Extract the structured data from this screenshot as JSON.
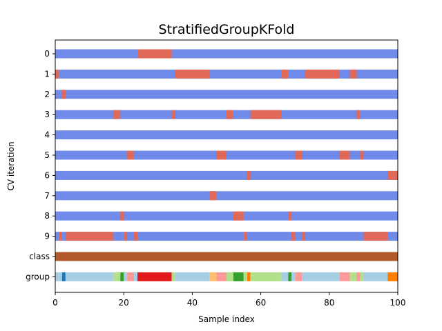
{
  "chart_data": {
    "type": "bar",
    "title": "StratifiedGroupKFold",
    "xlabel": "Sample index",
    "ylabel": "CV iteration",
    "xlim": [
      0,
      100
    ],
    "xticks": [
      "0",
      "20",
      "40",
      "60",
      "80",
      "100"
    ],
    "row_labels": [
      "0",
      "1",
      "2",
      "3",
      "4",
      "5",
      "6",
      "7",
      "8",
      "9",
      "class",
      "group"
    ],
    "colors": {
      "train": "#6f8ae8",
      "test": "#e0695a",
      "class": "#b05a2a"
    },
    "cv_test_segments": [
      [
        [
          24,
          34
        ]
      ],
      [
        [
          0,
          1
        ],
        [
          35,
          45
        ],
        [
          66,
          68
        ],
        [
          73,
          83
        ],
        [
          86,
          88
        ]
      ],
      [
        [
          2,
          3
        ]
      ],
      [
        [
          17,
          19
        ],
        [
          34,
          35
        ],
        [
          50,
          52
        ],
        [
          57,
          66
        ],
        [
          88,
          89
        ]
      ],
      [],
      [
        [
          21,
          23
        ],
        [
          47,
          50
        ],
        [
          70,
          72
        ],
        [
          83,
          86
        ],
        [
          89,
          90
        ]
      ],
      [
        [
          56,
          57
        ],
        [
          97,
          100
        ]
      ],
      [
        [
          45,
          47
        ]
      ],
      [
        [
          19,
          20
        ],
        [
          52,
          55
        ],
        [
          68,
          69
        ]
      ],
      [
        [
          1,
          2
        ],
        [
          3,
          17
        ],
        [
          20,
          21
        ],
        [
          23,
          24
        ],
        [
          55,
          56
        ],
        [
          69,
          70
        ],
        [
          72,
          73
        ],
        [
          90,
          97
        ]
      ]
    ],
    "group_segments": [
      {
        "x": [
          0,
          2
        ],
        "color": "#a6cee3"
      },
      {
        "x": [
          2,
          3
        ],
        "color": "#1f78b4"
      },
      {
        "x": [
          3,
          17
        ],
        "color": "#a6cee3"
      },
      {
        "x": [
          17,
          19
        ],
        "color": "#b2df8a"
      },
      {
        "x": [
          19,
          20
        ],
        "color": "#33a02c"
      },
      {
        "x": [
          20,
          21
        ],
        "color": "#a6cee3"
      },
      {
        "x": [
          21,
          23
        ],
        "color": "#fb9a99"
      },
      {
        "x": [
          23,
          24
        ],
        "color": "#a6cee3"
      },
      {
        "x": [
          24,
          34
        ],
        "color": "#e31a1c"
      },
      {
        "x": [
          34,
          35
        ],
        "color": "#b2df8a"
      },
      {
        "x": [
          35,
          45
        ],
        "color": "#a6cee3"
      },
      {
        "x": [
          45,
          47
        ],
        "color": "#fdbf6f"
      },
      {
        "x": [
          47,
          50
        ],
        "color": "#fb9a99"
      },
      {
        "x": [
          50,
          52
        ],
        "color": "#b2df8a"
      },
      {
        "x": [
          52,
          55
        ],
        "color": "#33a02c"
      },
      {
        "x": [
          55,
          56
        ],
        "color": "#b2df8a"
      },
      {
        "x": [
          56,
          57
        ],
        "color": "#ff7f00"
      },
      {
        "x": [
          57,
          66
        ],
        "color": "#b2df8a"
      },
      {
        "x": [
          66,
          68
        ],
        "color": "#a6cee3"
      },
      {
        "x": [
          68,
          69
        ],
        "color": "#33a02c"
      },
      {
        "x": [
          69,
          70
        ],
        "color": "#a6cee3"
      },
      {
        "x": [
          70,
          72
        ],
        "color": "#fb9a99"
      },
      {
        "x": [
          72,
          83
        ],
        "color": "#a6cee3"
      },
      {
        "x": [
          83,
          86
        ],
        "color": "#fb9a99"
      },
      {
        "x": [
          86,
          88
        ],
        "color": "#b2df8a"
      },
      {
        "x": [
          88,
          89
        ],
        "color": "#fb9a99"
      },
      {
        "x": [
          89,
          90
        ],
        "color": "#b2df8a"
      },
      {
        "x": [
          90,
          97
        ],
        "color": "#a6cee3"
      },
      {
        "x": [
          97,
          100
        ],
        "color": "#ff7f00"
      }
    ]
  }
}
